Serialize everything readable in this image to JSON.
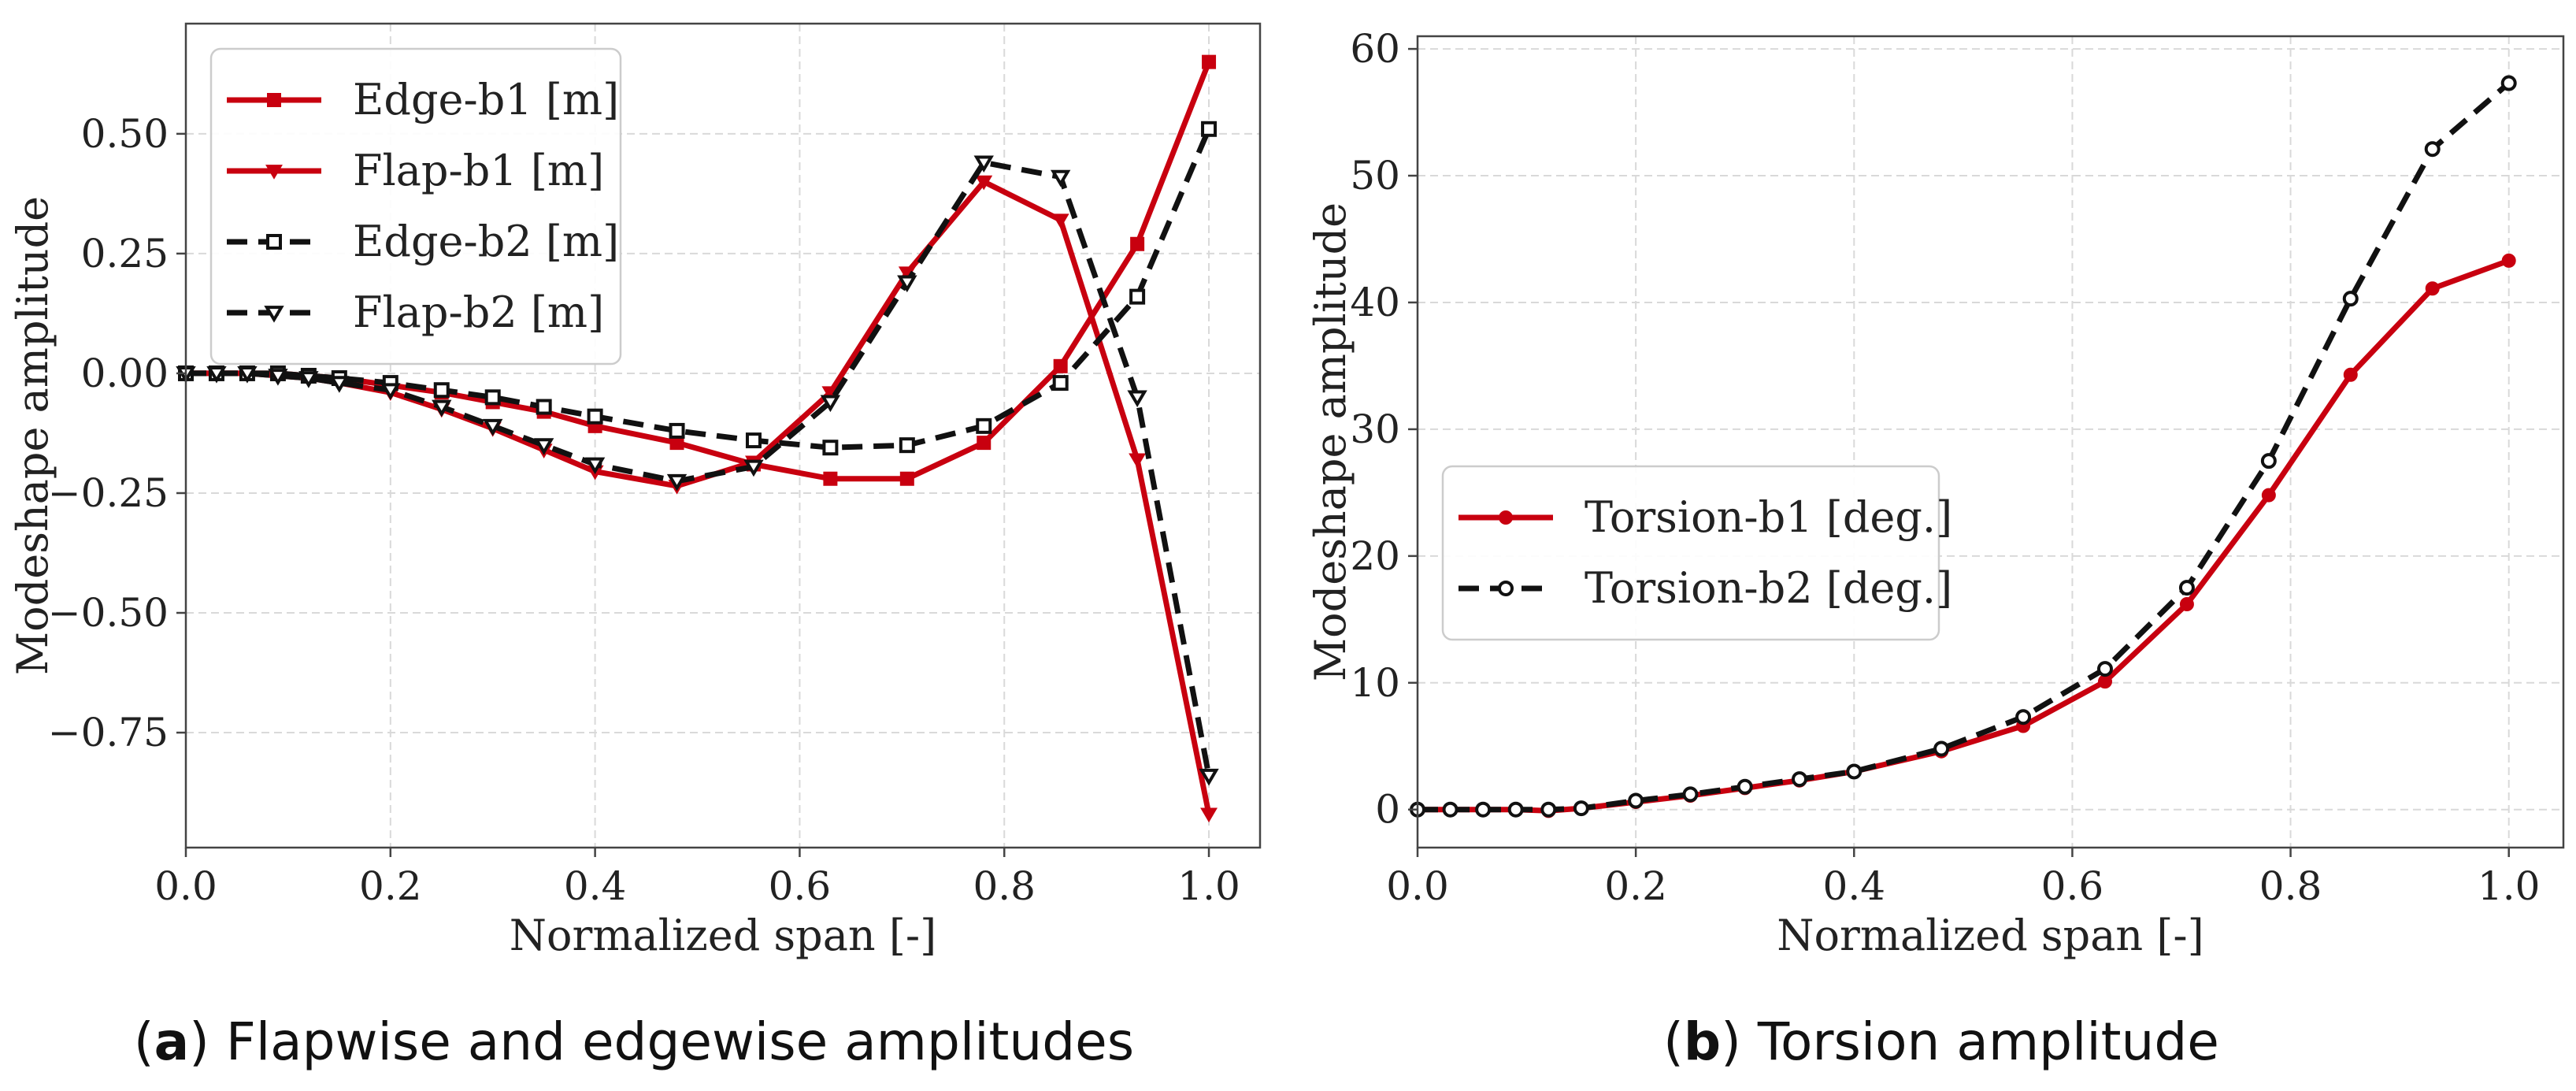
{
  "colors": {
    "red": "#c8000f",
    "black": "#111111"
  },
  "chart_data": [
    {
      "type": "line",
      "caption_letter": "a",
      "caption_text": "Flapwise and edgewise amplitudes",
      "xlabel": "Normalized span [-]",
      "ylabel": "Modeshape amplitude",
      "xlim": [
        0.0,
        1.05
      ],
      "ylim": [
        -0.99,
        0.73
      ],
      "xticks": [
        0.0,
        0.2,
        0.4,
        0.6,
        0.8,
        1.0
      ],
      "xtick_labels": [
        "0.0",
        "0.2",
        "0.4",
        "0.6",
        "0.8",
        "1.0"
      ],
      "yticks": [
        0.5,
        0.25,
        0.0,
        -0.25,
        -0.5,
        -0.75
      ],
      "ytick_labels": [
        "0.50",
        "0.25",
        "0.00",
        "−0.25",
        "−0.50",
        "−0.75"
      ],
      "grid": true,
      "legend_position": "top-left",
      "series": [
        {
          "name": "Edge-b1 [m]",
          "color": "#c8000f",
          "dash": "solid",
          "marker": "square-filled",
          "x": [
            0.0,
            0.03,
            0.06,
            0.09,
            0.12,
            0.15,
            0.2,
            0.25,
            0.3,
            0.35,
            0.4,
            0.48,
            0.555,
            0.63,
            0.705,
            0.78,
            0.855,
            0.93,
            1.0
          ],
          "values": [
            0.0,
            0.0,
            0.0,
            0.0,
            -0.005,
            -0.01,
            -0.025,
            -0.04,
            -0.06,
            -0.08,
            -0.11,
            -0.145,
            -0.19,
            -0.22,
            -0.22,
            -0.145,
            0.015,
            0.27,
            0.65
          ]
        },
        {
          "name": "Flap-b1 [m]",
          "color": "#c8000f",
          "dash": "solid",
          "marker": "triangle-down-filled",
          "x": [
            0.0,
            0.03,
            0.06,
            0.09,
            0.12,
            0.15,
            0.2,
            0.25,
            0.3,
            0.35,
            0.4,
            0.48,
            0.555,
            0.63,
            0.705,
            0.78,
            0.855,
            0.93,
            1.0
          ],
          "values": [
            0.0,
            0.0,
            0.0,
            -0.005,
            -0.01,
            -0.02,
            -0.04,
            -0.075,
            -0.115,
            -0.16,
            -0.205,
            -0.235,
            -0.185,
            -0.04,
            0.21,
            0.4,
            0.32,
            -0.18,
            -0.92
          ]
        },
        {
          "name": "Edge-b2 [m]",
          "color": "#111111",
          "dash": "dashed",
          "marker": "square-open",
          "x": [
            0.0,
            0.03,
            0.06,
            0.09,
            0.12,
            0.15,
            0.2,
            0.25,
            0.3,
            0.35,
            0.4,
            0.48,
            0.555,
            0.63,
            0.705,
            0.78,
            0.855,
            0.93,
            1.0
          ],
          "values": [
            0.0,
            0.0,
            0.0,
            0.0,
            -0.005,
            -0.01,
            -0.02,
            -0.035,
            -0.05,
            -0.07,
            -0.09,
            -0.12,
            -0.14,
            -0.155,
            -0.15,
            -0.11,
            -0.02,
            0.16,
            0.51
          ]
        },
        {
          "name": "Flap-b2 [m]",
          "color": "#111111",
          "dash": "dashed",
          "marker": "triangle-down-open",
          "x": [
            0.0,
            0.03,
            0.06,
            0.09,
            0.12,
            0.15,
            0.2,
            0.25,
            0.3,
            0.35,
            0.4,
            0.48,
            0.555,
            0.63,
            0.705,
            0.78,
            0.855,
            0.93,
            1.0
          ],
          "values": [
            0.0,
            0.0,
            0.0,
            -0.005,
            -0.01,
            -0.02,
            -0.035,
            -0.07,
            -0.11,
            -0.15,
            -0.19,
            -0.225,
            -0.195,
            -0.06,
            0.19,
            0.44,
            0.41,
            -0.05,
            -0.84
          ]
        }
      ]
    },
    {
      "type": "line",
      "caption_letter": "b",
      "caption_text": "Torsion amplitude",
      "xlabel": "Normalized span [-]",
      "ylabel": "Modeshape amplitude",
      "xlim": [
        0.0,
        1.05
      ],
      "ylim": [
        -3.0,
        61.0
      ],
      "xticks": [
        0.0,
        0.2,
        0.4,
        0.6,
        0.8,
        1.0
      ],
      "xtick_labels": [
        "0.0",
        "0.2",
        "0.4",
        "0.6",
        "0.8",
        "1.0"
      ],
      "yticks": [
        0,
        10,
        20,
        30,
        40,
        50,
        60
      ],
      "ytick_labels": [
        "0",
        "10",
        "20",
        "30",
        "40",
        "50",
        "60"
      ],
      "grid": true,
      "legend_position": "center-left",
      "series": [
        {
          "name": "Torsion-b1 [deg.]",
          "color": "#c8000f",
          "dash": "solid",
          "marker": "circle-filled",
          "x": [
            0.0,
            0.03,
            0.06,
            0.09,
            0.12,
            0.15,
            0.2,
            0.25,
            0.3,
            0.35,
            0.4,
            0.48,
            0.555,
            0.63,
            0.705,
            0.78,
            0.855,
            0.93,
            1.0
          ],
          "values": [
            0.0,
            0.0,
            0.0,
            0.0,
            -0.1,
            0.1,
            0.6,
            1.1,
            1.7,
            2.3,
            3.0,
            4.6,
            6.6,
            10.1,
            16.2,
            24.8,
            34.3,
            41.1,
            43.3
          ]
        },
        {
          "name": "Torsion-b2 [deg.]",
          "color": "#111111",
          "dash": "dashed",
          "marker": "circle-open",
          "x": [
            0.0,
            0.03,
            0.06,
            0.09,
            0.12,
            0.15,
            0.2,
            0.25,
            0.3,
            0.35,
            0.4,
            0.48,
            0.555,
            0.63,
            0.705,
            0.78,
            0.855,
            0.93,
            1.0
          ],
          "values": [
            0.0,
            0.0,
            0.0,
            0.0,
            0.0,
            0.1,
            0.7,
            1.2,
            1.8,
            2.4,
            3.0,
            4.8,
            7.3,
            11.1,
            17.5,
            27.5,
            40.3,
            52.1,
            57.3
          ]
        }
      ]
    }
  ]
}
